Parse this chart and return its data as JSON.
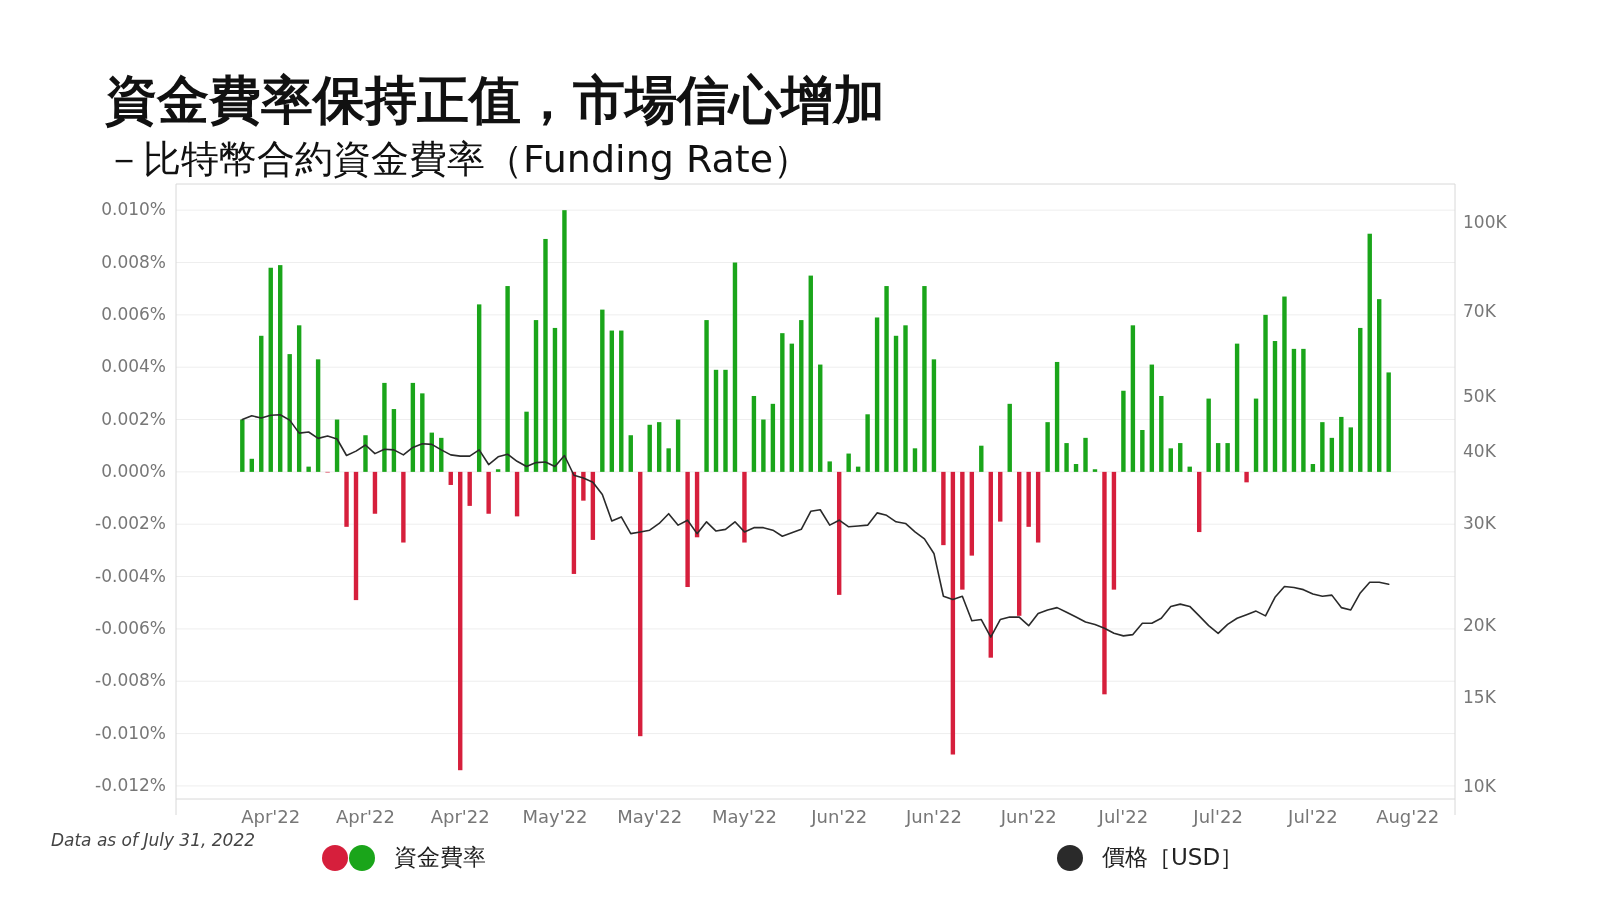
{
  "chart_data": {
    "type": "bar",
    "title": "資金費率保持正值，市場信心增加",
    "subtitle": "－比特幣合約資金費率（Funding Rate）",
    "x": [
      "2022-04-01",
      "2022-04-02",
      "2022-04-03",
      "2022-04-04",
      "2022-04-05",
      "2022-04-06",
      "2022-04-07",
      "2022-04-08",
      "2022-04-09",
      "2022-04-10",
      "2022-04-11",
      "2022-04-12",
      "2022-04-13",
      "2022-04-14",
      "2022-04-15",
      "2022-04-16",
      "2022-04-17",
      "2022-04-18",
      "2022-04-19",
      "2022-04-20",
      "2022-04-21",
      "2022-04-22",
      "2022-04-23",
      "2022-04-24",
      "2022-04-25",
      "2022-04-26",
      "2022-04-27",
      "2022-04-28",
      "2022-04-29",
      "2022-04-30",
      "2022-05-01",
      "2022-05-02",
      "2022-05-03",
      "2022-05-04",
      "2022-05-05",
      "2022-05-06",
      "2022-05-07",
      "2022-05-08",
      "2022-05-09",
      "2022-05-10",
      "2022-05-11",
      "2022-05-12",
      "2022-05-13",
      "2022-05-14",
      "2022-05-15",
      "2022-05-16",
      "2022-05-17",
      "2022-05-18",
      "2022-05-19",
      "2022-05-20",
      "2022-05-21",
      "2022-05-22",
      "2022-05-23",
      "2022-05-24",
      "2022-05-25",
      "2022-05-26",
      "2022-05-27",
      "2022-05-28",
      "2022-05-29",
      "2022-05-30",
      "2022-05-31",
      "2022-06-01",
      "2022-06-02",
      "2022-06-03",
      "2022-06-04",
      "2022-06-05",
      "2022-06-06",
      "2022-06-07",
      "2022-06-08",
      "2022-06-09",
      "2022-06-10",
      "2022-06-11",
      "2022-06-12",
      "2022-06-13",
      "2022-06-14",
      "2022-06-15",
      "2022-06-16",
      "2022-06-17",
      "2022-06-18",
      "2022-06-19",
      "2022-06-20",
      "2022-06-21",
      "2022-06-22",
      "2022-06-23",
      "2022-06-24",
      "2022-06-25",
      "2022-06-26",
      "2022-06-27",
      "2022-06-28",
      "2022-06-29",
      "2022-06-30",
      "2022-07-01",
      "2022-07-02",
      "2022-07-03",
      "2022-07-04",
      "2022-07-05",
      "2022-07-06",
      "2022-07-07",
      "2022-07-08",
      "2022-07-09",
      "2022-07-10",
      "2022-07-11",
      "2022-07-12",
      "2022-07-13",
      "2022-07-14",
      "2022-07-15",
      "2022-07-16",
      "2022-07-17",
      "2022-07-18",
      "2022-07-19",
      "2022-07-20",
      "2022-07-21",
      "2022-07-22",
      "2022-07-23",
      "2022-07-24",
      "2022-07-25",
      "2022-07-26",
      "2022-07-27",
      "2022-07-28",
      "2022-07-29",
      "2022-07-30",
      "2022-07-31"
    ],
    "series": [
      {
        "name": "資金費率",
        "values": [
          0.002,
          0.0005,
          0.0052,
          0.0078,
          0.0079,
          0.0045,
          0.0056,
          0.0002,
          0.0043,
          0,
          0.002,
          -0.0021,
          -0.0049,
          0.0014,
          -0.0016,
          0.0034,
          0.0024,
          -0.0027,
          0.0034,
          0.003,
          0.0015,
          0.0013,
          -0.0005,
          -0.0114,
          -0.0013,
          0.0064,
          -0.0016,
          0.0001,
          0.0071,
          -0.0017,
          0.0023,
          0.0058,
          0.0089,
          0.0055,
          0.01,
          -0.0039,
          -0.0011,
          -0.0026,
          0.0062,
          0.0054,
          0.0054,
          0.0014,
          -0.0101,
          0.0018,
          0.0019,
          0.0009,
          0.002,
          -0.0044,
          -0.0025,
          0.0058,
          0.0039,
          0.0039,
          0.008,
          -0.0027,
          0.0029,
          0.002,
          0.0026,
          0.0053,
          0.0049,
          0.0058,
          0.0075,
          0.0041,
          0.0004,
          -0.0047,
          0.0007,
          0.0002,
          0.0022,
          0.0059,
          0.0071,
          0.0052,
          0.0056,
          0.0009,
          0.0071,
          0.0043,
          -0.0028,
          -0.0108,
          -0.0045,
          -0.0032,
          0.001,
          -0.0071,
          -0.0019,
          0.0026,
          -0.0055,
          -0.0021,
          -0.0027,
          0.0019,
          0.0042,
          0.0011,
          0.0003,
          0.0013,
          0.0001,
          -0.0085,
          -0.0045,
          0.0031,
          0.0056,
          0.0016,
          0.0041,
          0.0029,
          0.0009,
          0.0011,
          0.0002,
          -0.0023,
          0.0028,
          0.0011,
          0.0011,
          0.0049,
          -0.0004,
          0.0028,
          0.006,
          0.005,
          0.0067,
          0.0047,
          0.0047,
          0.0003,
          0.0019,
          0.0013,
          0.0021,
          0.0017,
          0.0055,
          0.0091,
          0.0066,
          0.0038
        ],
        "colors": [
          "#1aa51a",
          "#1aa51a",
          "#1aa51a",
          "#1aa51a",
          "#1aa51a",
          "#1aa51a",
          "#1aa51a",
          "#1aa51a",
          "#1aa51a",
          "#d61f3c",
          "#1aa51a",
          "#d61f3c",
          "#d61f3c",
          "#1aa51a",
          "#d61f3c",
          "#1aa51a",
          "#1aa51a",
          "#d61f3c",
          "#1aa51a",
          "#1aa51a",
          "#1aa51a",
          "#1aa51a",
          "#d61f3c",
          "#d61f3c",
          "#d61f3c",
          "#1aa51a",
          "#d61f3c",
          "#1aa51a",
          "#1aa51a",
          "#d61f3c",
          "#1aa51a",
          "#1aa51a",
          "#1aa51a",
          "#1aa51a",
          "#1aa51a",
          "#d61f3c",
          "#d61f3c",
          "#d61f3c",
          "#1aa51a",
          "#1aa51a",
          "#1aa51a",
          "#1aa51a",
          "#d61f3c",
          "#1aa51a",
          "#1aa51a",
          "#1aa51a",
          "#1aa51a",
          "#d61f3c",
          "#d61f3c",
          "#1aa51a",
          "#1aa51a",
          "#1aa51a",
          "#1aa51a",
          "#d61f3c",
          "#1aa51a",
          "#1aa51a",
          "#1aa51a",
          "#1aa51a",
          "#1aa51a",
          "#1aa51a",
          "#1aa51a",
          "#1aa51a",
          "#1aa51a",
          "#d61f3c",
          "#1aa51a",
          "#1aa51a",
          "#1aa51a",
          "#1aa51a",
          "#1aa51a",
          "#1aa51a",
          "#1aa51a",
          "#1aa51a",
          "#1aa51a",
          "#1aa51a",
          "#d61f3c",
          "#d61f3c",
          "#d61f3c",
          "#d61f3c",
          "#1aa51a",
          "#d61f3c",
          "#d61f3c",
          "#1aa51a",
          "#d61f3c",
          "#d61f3c",
          "#d61f3c",
          "#1aa51a",
          "#1aa51a",
          "#1aa51a",
          "#1aa51a",
          "#1aa51a",
          "#1aa51a",
          "#d61f3c",
          "#d61f3c",
          "#1aa51a",
          "#1aa51a",
          "#1aa51a",
          "#1aa51a",
          "#1aa51a",
          "#1aa51a",
          "#1aa51a",
          "#1aa51a",
          "#d61f3c",
          "#1aa51a",
          "#1aa51a",
          "#1aa51a",
          "#1aa51a",
          "#d61f3c",
          "#1aa51a",
          "#1aa51a",
          "#1aa51a",
          "#1aa51a",
          "#1aa51a",
          "#1aa51a",
          "#1aa51a",
          "#1aa51a",
          "#1aa51a",
          "#1aa51a",
          "#1aa51a",
          "#1aa51a",
          "#1aa51a",
          "#1aa51a",
          "#1aa51a"
        ]
      },
      {
        "name": "價格［USD］",
        "type": "line",
        "axis": "y2",
        "color": "#2a2a2a",
        "values": [
          45600,
          46300,
          45900,
          46400,
          46500,
          45500,
          43200,
          43400,
          42300,
          42700,
          42200,
          39500,
          40200,
          41200,
          39800,
          40500,
          40400,
          39600,
          40800,
          41400,
          41300,
          40400,
          39600,
          39400,
          39400,
          40400,
          38100,
          39300,
          39700,
          38600,
          37800,
          38400,
          38500,
          37800,
          39500,
          36500,
          36100,
          35500,
          33800,
          30400,
          30900,
          28900,
          29100,
          29300,
          30100,
          31300,
          29900,
          30500,
          28900,
          30300,
          29200,
          29400,
          30300,
          29100,
          29600,
          29600,
          29300,
          28600,
          29000,
          29400,
          31600,
          31800,
          29900,
          30500,
          29700,
          29800,
          29900,
          31400,
          31100,
          30300,
          30100,
          29100,
          28300,
          26700,
          22500,
          22200,
          22500,
          20400,
          20500,
          19100,
          20500,
          20700,
          20700,
          20000,
          21000,
          21300,
          21500,
          21100,
          20700,
          20300,
          20100,
          19800,
          19400,
          19200,
          19300,
          20200,
          20200,
          20600,
          21600,
          21800,
          21600,
          20800,
          20000,
          19400,
          20100,
          20600,
          20900,
          21200,
          20800,
          22400,
          23400,
          23300,
          23100,
          22700,
          22500,
          22600,
          21500,
          21300,
          22800,
          23800,
          23800,
          23600
        ]
      }
    ],
    "xlim": [
      "2022-03-25",
      "2022-08-07"
    ],
    "xticks": [
      {
        "value": "2022-04-04",
        "label": "Apr'22"
      },
      {
        "value": "2022-04-14",
        "label": "Apr'22"
      },
      {
        "value": "2022-04-24",
        "label": "Apr'22"
      },
      {
        "value": "2022-05-04",
        "label": "May'22"
      },
      {
        "value": "2022-05-14",
        "label": "May'22"
      },
      {
        "value": "2022-05-24",
        "label": "May'22"
      },
      {
        "value": "2022-06-03",
        "label": "Jun'22"
      },
      {
        "value": "2022-06-13",
        "label": "Jun'22"
      },
      {
        "value": "2022-06-23",
        "label": "Jun'22"
      },
      {
        "value": "2022-07-03",
        "label": "Jul'22"
      },
      {
        "value": "2022-07-13",
        "label": "Jul'22"
      },
      {
        "value": "2022-07-23",
        "label": "Jul'22"
      },
      {
        "value": "2022-08-02",
        "label": "Aug'22"
      }
    ],
    "ylim": [
      -0.0125,
      0.011
    ],
    "yticks": [
      {
        "value": 0.01,
        "label": "0.010%"
      },
      {
        "value": 0.008,
        "label": "0.008%"
      },
      {
        "value": 0.006,
        "label": "0.006%"
      },
      {
        "value": 0.004,
        "label": "0.004%"
      },
      {
        "value": 0.002,
        "label": "0.002%"
      },
      {
        "value": 0,
        "label": "0.000%"
      },
      {
        "value": -0.002,
        "label": "-0.002%"
      },
      {
        "value": -0.004,
        "label": "-0.004%"
      },
      {
        "value": -0.006,
        "label": "-0.006%"
      },
      {
        "value": -0.008,
        "label": "-0.008%"
      },
      {
        "value": -0.01,
        "label": "-0.010%"
      },
      {
        "value": -0.012,
        "label": "-0.012%"
      }
    ],
    "y2lim": [
      10000,
      117000
    ],
    "y2ticks": [
      {
        "value": 100000,
        "label": "100K"
      },
      {
        "value": 70000,
        "label": "70K"
      },
      {
        "value": 50000,
        "label": "50K"
      },
      {
        "value": 40000,
        "label": "40K"
      },
      {
        "value": 30000,
        "label": "30K"
      },
      {
        "value": 20000,
        "label": "20K"
      },
      {
        "value": 15000,
        "label": "15K"
      },
      {
        "value": 10000,
        "label": "10K"
      }
    ],
    "log": "y2",
    "grid": "y",
    "legend": "bottom",
    "annotations": [
      "Data as of July 31, 2022"
    ]
  }
}
